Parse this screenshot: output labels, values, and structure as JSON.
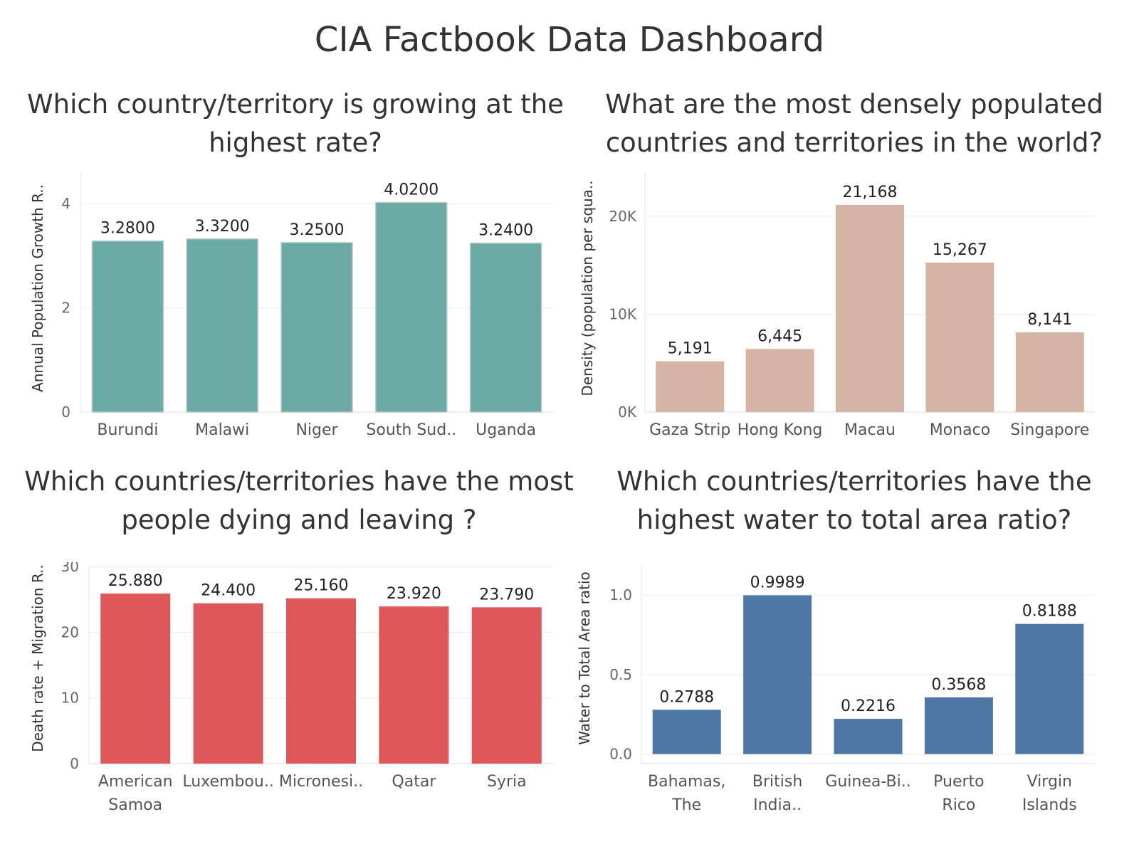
{
  "title": "CIA Factbook Data Dashboard",
  "chart_data": [
    {
      "id": "growth",
      "type": "bar",
      "title": "Which country/territory is growing at the highest rate?",
      "ylabel": "Annual Population Growth R..",
      "xlabel": "",
      "categories": [
        [
          "Burundi"
        ],
        [
          "Malawi"
        ],
        [
          "Niger"
        ],
        [
          "South Sud.."
        ],
        [
          "Uganda"
        ]
      ],
      "values": [
        3.28,
        3.32,
        3.25,
        4.02,
        3.24
      ],
      "value_labels": [
        "3.2800",
        "3.3200",
        "3.2500",
        "4.0200",
        "3.2400"
      ],
      "ylim": [
        0,
        4.6
      ],
      "yticks": [
        0,
        2,
        4
      ],
      "ytick_labels": [
        "0",
        "2",
        "4"
      ],
      "color": "#6aaaa4",
      "grid": true,
      "legend": "none"
    },
    {
      "id": "density",
      "type": "bar",
      "title": "What are the most densely populated countries and territories in the world?",
      "ylabel": "Density (population per squa..",
      "xlabel": "",
      "categories": [
        [
          "Gaza Strip"
        ],
        [
          "Hong Kong"
        ],
        [
          "Macau"
        ],
        [
          "Monaco"
        ],
        [
          "Singapore"
        ]
      ],
      "values": [
        5191,
        6445,
        21168,
        15267,
        8141
      ],
      "value_labels": [
        "5,191",
        "6,445",
        "21,168",
        "15,267",
        "8,141"
      ],
      "ylim": [
        0,
        24500
      ],
      "yticks": [
        0,
        10000,
        20000
      ],
      "ytick_labels": [
        "0K",
        "10K",
        "20K"
      ],
      "color": "#d5b4a6",
      "grid": true,
      "legend": "none"
    },
    {
      "id": "death",
      "type": "bar",
      "title": "Which countries/territories have the most people dying and leaving ?",
      "ylabel": "Death rate + Migration R..",
      "xlabel": "",
      "categories": [
        [
          "American",
          "Samoa"
        ],
        [
          "Luxembou.."
        ],
        [
          "Micronesi.."
        ],
        [
          "Qatar"
        ],
        [
          "Syria"
        ]
      ],
      "values": [
        25.88,
        24.4,
        25.16,
        23.92,
        23.79
      ],
      "value_labels": [
        "25.880",
        "24.400",
        "25.160",
        "23.920",
        "23.790"
      ],
      "ylim": [
        0,
        30
      ],
      "yticks": [
        0,
        10,
        20,
        30
      ],
      "ytick_labels": [
        "0",
        "10",
        "20",
        "30"
      ],
      "color": "#e0575a",
      "grid": true,
      "legend": "none"
    },
    {
      "id": "water",
      "type": "bar",
      "title": "Which countries/territories have the highest water to total area ratio?",
      "ylabel": "Water to Total Area ratio",
      "xlabel": "",
      "categories": [
        [
          "Bahamas,",
          "The"
        ],
        [
          "British",
          "India.."
        ],
        [
          "Guinea-Bi.."
        ],
        [
          "Puerto",
          "Rico"
        ],
        [
          "Virgin",
          "Islands"
        ]
      ],
      "values": [
        0.2788,
        0.9989,
        0.2216,
        0.3568,
        0.8188
      ],
      "value_labels": [
        "0.2788",
        "0.9989",
        "0.2216",
        "0.3568",
        "0.8188"
      ],
      "ylim": [
        -0.06,
        1.18
      ],
      "yticks": [
        0,
        0.5,
        1
      ],
      "ytick_labels": [
        "0.0",
        "0.5",
        "1.0"
      ],
      "color": "#4d78a6",
      "grid": true,
      "legend": "none"
    }
  ]
}
